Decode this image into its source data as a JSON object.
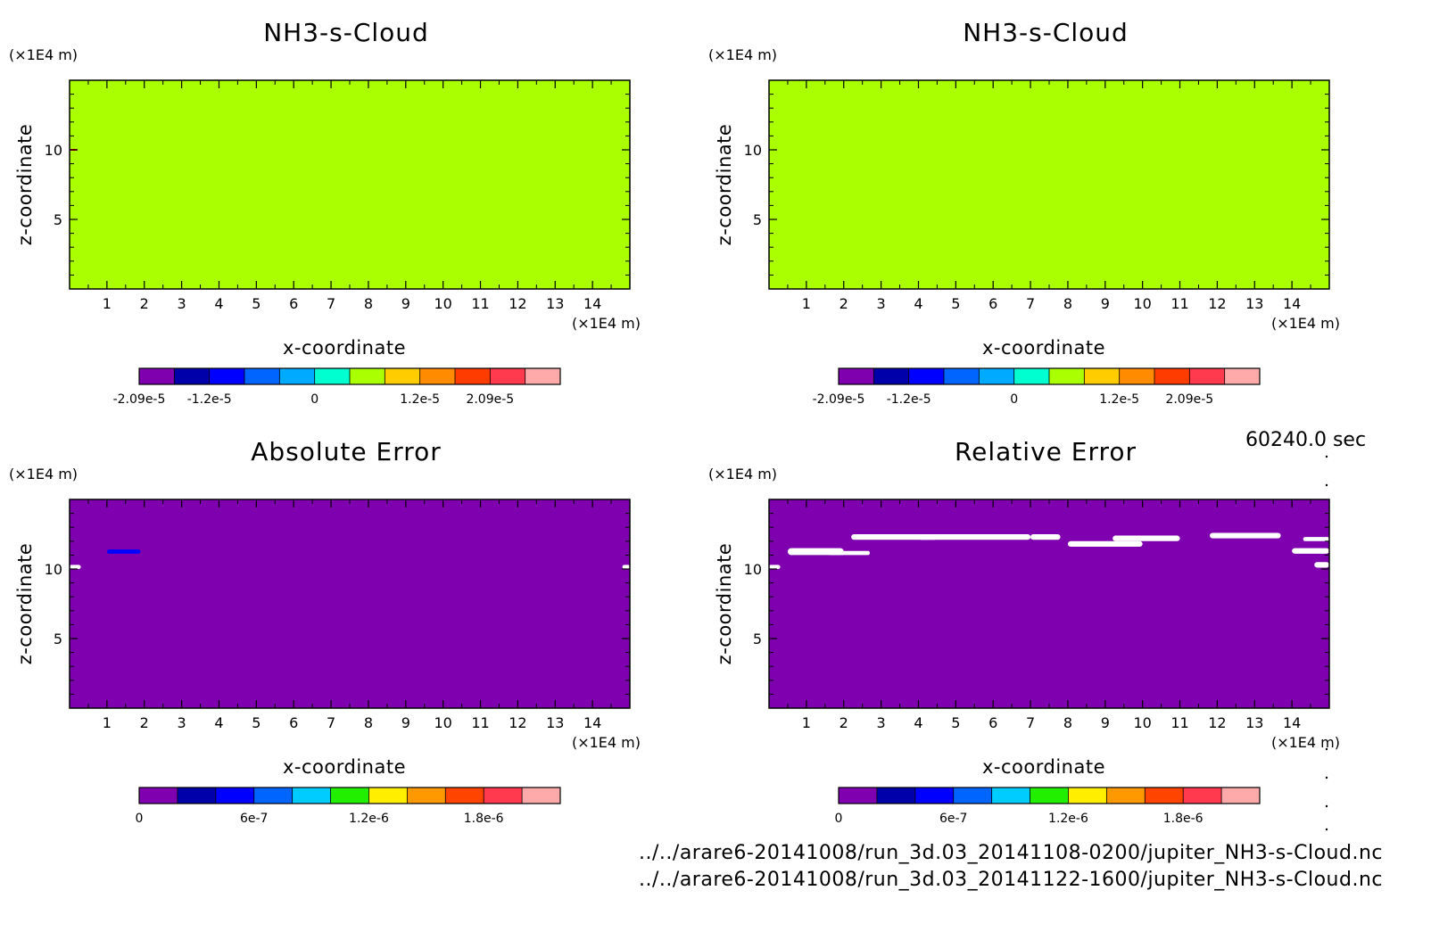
{
  "figure": {
    "time_label": "60240.0 sec",
    "footer_lines": [
      "../../arare6-20141008/run_3d.03_20141108-0200/jupiter_NH3-s-Cloud.nc",
      "../../arare6-20141008/run_3d.03_20141122-1600/jupiter_NH3-s-Cloud.nc"
    ]
  },
  "chart_data": [
    {
      "type": "heatmap",
      "title": "NH3-s-Cloud",
      "xlabel": "x-coordinate",
      "ylabel": "z-coordinate",
      "x_unit": "(×1E4 m)",
      "y_unit": "(×1E4 m)",
      "xlim": [
        0,
        15
      ],
      "ylim": [
        0,
        15
      ],
      "x_ticks": [
        1,
        2,
        3,
        4,
        5,
        6,
        7,
        8,
        9,
        10,
        11,
        12,
        13,
        14
      ],
      "y_ticks": [
        5,
        10
      ],
      "background_color": "#aaff00",
      "colorbar": {
        "colors": [
          "#7f00ae",
          "#0000aa",
          "#0000ff",
          "#0064ff",
          "#00aaff",
          "#00ffd0",
          "#aaff00",
          "#ffcc00",
          "#ff8c00",
          "#ff3c00",
          "#ff3a4e",
          "#ffaaaa"
        ],
        "tick_labels": [
          "-2.09e-5",
          "-1.2e-5",
          "0",
          "1.2e-5",
          "2.09e-5"
        ],
        "tick_positions": [
          0,
          2,
          5,
          8,
          10
        ]
      },
      "features": [
        {
          "shape": "line",
          "x": [
            0,
            0.2
          ],
          "z": 10.0,
          "color": "#ff0000"
        }
      ]
    },
    {
      "type": "heatmap",
      "title": "NH3-s-Cloud",
      "xlabel": "x-coordinate",
      "ylabel": "z-coordinate",
      "x_unit": "(×1E4 m)",
      "y_unit": "(×1E4 m)",
      "xlim": [
        0,
        15
      ],
      "ylim": [
        0,
        15
      ],
      "x_ticks": [
        1,
        2,
        3,
        4,
        5,
        6,
        7,
        8,
        9,
        10,
        11,
        12,
        13,
        14
      ],
      "y_ticks": [
        5,
        10
      ],
      "background_color": "#aaff00",
      "colorbar": {
        "colors": [
          "#7f00ae",
          "#0000aa",
          "#0000ff",
          "#0064ff",
          "#00aaff",
          "#00ffd0",
          "#aaff00",
          "#ffcc00",
          "#ff8c00",
          "#ff3c00",
          "#ff3a4e",
          "#ffaaaa"
        ],
        "tick_labels": [
          "-2.09e-5",
          "-1.2e-5",
          "0",
          "1.2e-5",
          "2.09e-5"
        ],
        "tick_positions": [
          0,
          2,
          5,
          8,
          10
        ]
      },
      "features": []
    },
    {
      "type": "heatmap",
      "title": "Absolute Error",
      "xlabel": "x-coordinate",
      "ylabel": "z-coordinate",
      "x_unit": "(×1E4 m)",
      "y_unit": "(×1E4 m)",
      "xlim": [
        0,
        15
      ],
      "ylim": [
        0,
        15
      ],
      "x_ticks": [
        1,
        2,
        3,
        4,
        5,
        6,
        7,
        8,
        9,
        10,
        11,
        12,
        13,
        14
      ],
      "y_ticks": [
        5,
        10
      ],
      "background_color": "#7f00ae",
      "colorbar": {
        "colors": [
          "#7f00ae",
          "#0000aa",
          "#0000ff",
          "#0064ff",
          "#00ccff",
          "#22ee00",
          "#ffee00",
          "#ff9900",
          "#ff4400",
          "#ff3a4e",
          "#ffaaaa"
        ],
        "tick_labels": [
          "0",
          "6e-7",
          "1.2e-6",
          "1.8e-6"
        ],
        "tick_positions": [
          0,
          3,
          6,
          9
        ]
      },
      "features": [
        {
          "shape": "blob",
          "x": [
            1.0,
            1.9
          ],
          "z": [
            11.1,
            11.4
          ],
          "color": "#0000ff"
        },
        {
          "shape": "blob",
          "x": [
            0,
            0.3
          ],
          "z": [
            10.0,
            10.3
          ],
          "color": "#ffffff"
        },
        {
          "shape": "blob",
          "x": [
            14.8,
            15
          ],
          "z": [
            10.0,
            10.3
          ],
          "color": "#ffffff"
        }
      ]
    },
    {
      "type": "heatmap",
      "title": "Relative Error",
      "xlabel": "x-coordinate",
      "ylabel": "z-coordinate",
      "x_unit": "(×1E4 m)",
      "y_unit": "(×1E4 m)",
      "xlim": [
        0,
        15
      ],
      "ylim": [
        0,
        15
      ],
      "x_ticks": [
        1,
        2,
        3,
        4,
        5,
        6,
        7,
        8,
        9,
        10,
        11,
        12,
        13,
        14
      ],
      "y_ticks": [
        5,
        10
      ],
      "background_color": "#7f00ae",
      "colorbar": {
        "colors": [
          "#7f00ae",
          "#0000aa",
          "#0000ff",
          "#0064ff",
          "#00ccff",
          "#22ee00",
          "#ffee00",
          "#ff9900",
          "#ff4400",
          "#ff3a4e",
          "#ffaaaa"
        ],
        "tick_labels": [
          "0",
          "6e-7",
          "1.2e-6",
          "1.8e-6"
        ],
        "tick_positions": [
          0,
          3,
          6,
          9
        ]
      },
      "features": [
        {
          "shape": "blob",
          "x": [
            0.5,
            2.0
          ],
          "z": [
            11.0,
            11.5
          ],
          "color": "#ffffff"
        },
        {
          "shape": "blob",
          "x": [
            1.6,
            2.7
          ],
          "z": [
            11.0,
            11.3
          ],
          "color": "#ffffff"
        },
        {
          "shape": "blob",
          "x": [
            2.2,
            4.5
          ],
          "z": [
            12.1,
            12.5
          ],
          "color": "#ffffff"
        },
        {
          "shape": "blob",
          "x": [
            4.0,
            7.0
          ],
          "z": [
            12.1,
            12.5
          ],
          "color": "#ffffff"
        },
        {
          "shape": "blob",
          "x": [
            7.0,
            7.8
          ],
          "z": [
            12.1,
            12.5
          ],
          "color": "#ffffff"
        },
        {
          "shape": "blob",
          "x": [
            8.0,
            10.0
          ],
          "z": [
            11.6,
            12.0
          ],
          "color": "#ffffff"
        },
        {
          "shape": "blob",
          "x": [
            9.2,
            11.0
          ],
          "z": [
            12.0,
            12.4
          ],
          "color": "#ffffff"
        },
        {
          "shape": "blob",
          "x": [
            11.8,
            13.7
          ],
          "z": [
            12.2,
            12.6
          ],
          "color": "#ffffff"
        },
        {
          "shape": "blob",
          "x": [
            14.3,
            15.0
          ],
          "z": [
            12.0,
            12.3
          ],
          "color": "#ffffff"
        },
        {
          "shape": "blob",
          "x": [
            14.0,
            15.0
          ],
          "z": [
            11.1,
            11.5
          ],
          "color": "#ffffff"
        },
        {
          "shape": "blob",
          "x": [
            14.6,
            15.0
          ],
          "z": [
            10.1,
            10.5
          ],
          "color": "#ffffff"
        },
        {
          "shape": "blob",
          "x": [
            0,
            0.3
          ],
          "z": [
            10.0,
            10.3
          ],
          "color": "#ffffff"
        }
      ]
    }
  ]
}
